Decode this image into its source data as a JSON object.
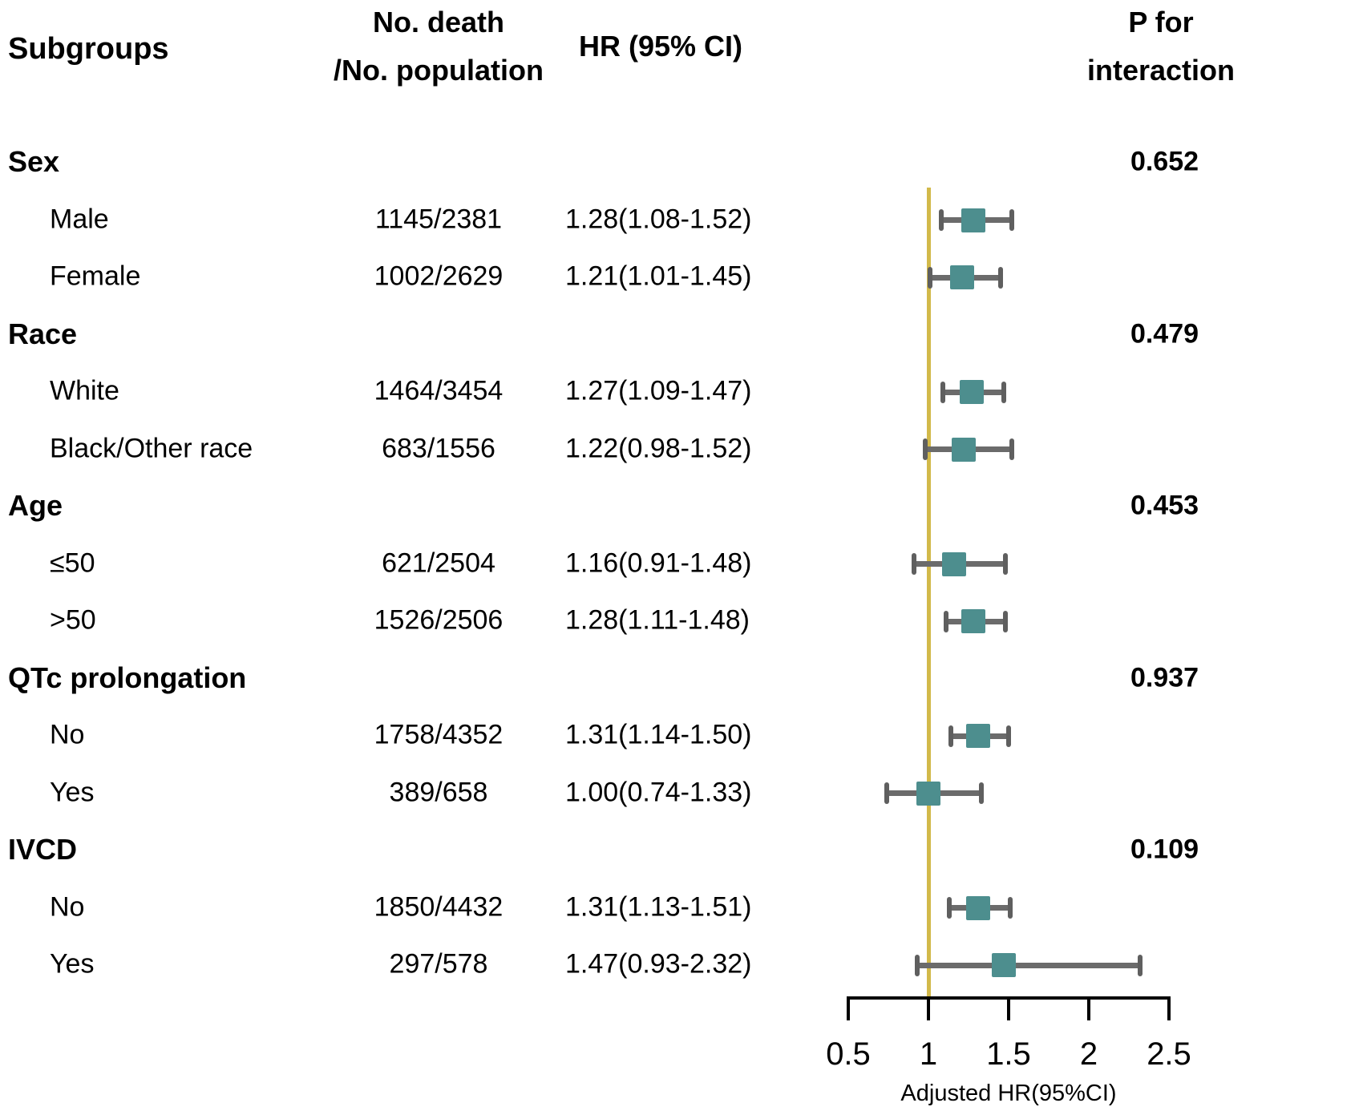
{
  "header": {
    "col_subgroups": "Subgroups",
    "col_n_line1": "No. death",
    "col_n_line2": "/No. population",
    "col_hr": "HR (95% CI)",
    "col_p_line1": "P for",
    "col_p_line2": "interaction"
  },
  "chart_data": {
    "type": "forest",
    "xlabel": "Adjusted HR(95%CI)",
    "axis_ticks": [
      0.5,
      1,
      1.5,
      2,
      2.5
    ],
    "axis_tick_labels": [
      "0.5",
      "1",
      "1.5",
      "2",
      "2.5"
    ],
    "axis_range": [
      0.5,
      2.5
    ],
    "reference_line": 1,
    "colors": {
      "marker": "#4d8e8e",
      "whisker": "#6b6b6b",
      "cap": "#5f5f5f",
      "reference_line": "#d2b94a",
      "axis": "#000000",
      "text": "#000000"
    },
    "rows": [
      {
        "kind": "section",
        "label": "Sex",
        "p_interaction": "0.652"
      },
      {
        "kind": "item",
        "label": "Male",
        "n": "1145/2381",
        "hr_text": "1.28(1.08-1.52)",
        "hr": 1.28,
        "ci_low": 1.08,
        "ci_high": 1.52
      },
      {
        "kind": "item",
        "label": "Female",
        "n": "1002/2629",
        "hr_text": "1.21(1.01-1.45)",
        "hr": 1.21,
        "ci_low": 1.01,
        "ci_high": 1.45
      },
      {
        "kind": "section",
        "label": "Race",
        "p_interaction": "0.479"
      },
      {
        "kind": "item",
        "label": "White",
        "n": "1464/3454",
        "hr_text": "1.27(1.09-1.47)",
        "hr": 1.27,
        "ci_low": 1.09,
        "ci_high": 1.47
      },
      {
        "kind": "item",
        "label": "Black/Other race",
        "n": "683/1556",
        "hr_text": "1.22(0.98-1.52)",
        "hr": 1.22,
        "ci_low": 0.98,
        "ci_high": 1.52
      },
      {
        "kind": "section",
        "label": "Age",
        "p_interaction": "0.453"
      },
      {
        "kind": "item",
        "label": "≤50",
        "n": "621/2504",
        "hr_text": "1.16(0.91-1.48)",
        "hr": 1.16,
        "ci_low": 0.91,
        "ci_high": 1.48
      },
      {
        "kind": "item",
        "label": ">50",
        "n": "1526/2506",
        "hr_text": "1.28(1.11-1.48)",
        "hr": 1.28,
        "ci_low": 1.11,
        "ci_high": 1.48
      },
      {
        "kind": "section",
        "label": "QTc prolongation",
        "p_interaction": "0.937"
      },
      {
        "kind": "item",
        "label": "No",
        "n": "1758/4352",
        "hr_text": "1.31(1.14-1.50)",
        "hr": 1.31,
        "ci_low": 1.14,
        "ci_high": 1.5
      },
      {
        "kind": "item",
        "label": "Yes",
        "n": "389/658",
        "hr_text": "1.00(0.74-1.33)",
        "hr": 1.0,
        "ci_low": 0.74,
        "ci_high": 1.33
      },
      {
        "kind": "section",
        "label": "IVCD",
        "p_interaction": "0.109"
      },
      {
        "kind": "item",
        "label": "No",
        "n": "1850/4432",
        "hr_text": "1.31(1.13-1.51)",
        "hr": 1.31,
        "ci_low": 1.13,
        "ci_high": 1.51
      },
      {
        "kind": "item",
        "label": "Yes",
        "n": "297/578",
        "hr_text": "1.47(0.93-2.32)",
        "hr": 1.47,
        "ci_low": 0.93,
        "ci_high": 2.32
      }
    ]
  }
}
